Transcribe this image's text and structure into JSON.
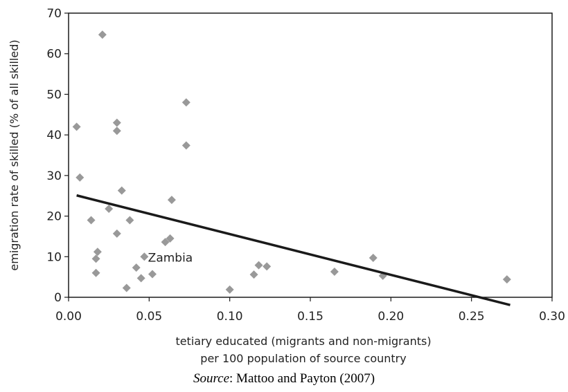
{
  "chart_data": {
    "type": "scatter",
    "xlabel_lines": [
      "tetiary educated (migrants and non-migrants)",
      "per 100 population of source country"
    ],
    "ylabel": "emigration rate of skilled (% of all skilled)",
    "xlim": [
      0,
      0.3
    ],
    "ylim": [
      0,
      70
    ],
    "x_ticks": [
      "0.00",
      "0.05",
      "0.10",
      "0.15",
      "0.20",
      "0.25",
      "0.30"
    ],
    "y_ticks": [
      "0",
      "10",
      "20",
      "30",
      "40",
      "50",
      "60",
      "70"
    ],
    "grid": false,
    "marker": "diamond",
    "marker_color": "#999999",
    "trend_color": "#1a1a1a",
    "points": [
      {
        "x": 0.005,
        "y": 42
      },
      {
        "x": 0.007,
        "y": 29.5
      },
      {
        "x": 0.014,
        "y": 19
      },
      {
        "x": 0.017,
        "y": 9.5
      },
      {
        "x": 0.017,
        "y": 6
      },
      {
        "x": 0.018,
        "y": 11.2
      },
      {
        "x": 0.021,
        "y": 64.7
      },
      {
        "x": 0.025,
        "y": 21.8
      },
      {
        "x": 0.03,
        "y": 43
      },
      {
        "x": 0.03,
        "y": 41
      },
      {
        "x": 0.03,
        "y": 15.7
      },
      {
        "x": 0.033,
        "y": 26.3
      },
      {
        "x": 0.036,
        "y": 2.3
      },
      {
        "x": 0.038,
        "y": 19
      },
      {
        "x": 0.042,
        "y": 7.3
      },
      {
        "x": 0.045,
        "y": 4.7
      },
      {
        "x": 0.047,
        "y": 10
      },
      {
        "x": 0.052,
        "y": 5.7
      },
      {
        "x": 0.06,
        "y": 13.6
      },
      {
        "x": 0.063,
        "y": 14.5
      },
      {
        "x": 0.064,
        "y": 24
      },
      {
        "x": 0.073,
        "y": 48
      },
      {
        "x": 0.073,
        "y": 37.4
      },
      {
        "x": 0.1,
        "y": 1.9
      },
      {
        "x": 0.115,
        "y": 5.6
      },
      {
        "x": 0.118,
        "y": 7.9
      },
      {
        "x": 0.123,
        "y": 7.6
      },
      {
        "x": 0.165,
        "y": 6.3
      },
      {
        "x": 0.189,
        "y": 9.7
      },
      {
        "x": 0.195,
        "y": 5.3
      },
      {
        "x": 0.272,
        "y": 4.4
      }
    ],
    "trend_line": {
      "x": [
        0.005,
        0.274
      ],
      "y": [
        25.1,
        -1.9
      ]
    },
    "annotation": {
      "text": "Zambia",
      "x": 0.048,
      "y": 10
    }
  },
  "source": {
    "label": "Source",
    "text": ": Mattoo and Payton (2007)"
  }
}
